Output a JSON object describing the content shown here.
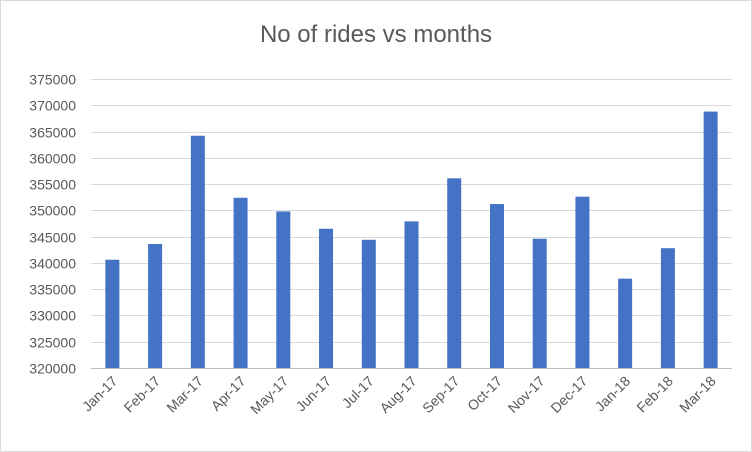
{
  "chart_data": {
    "type": "bar",
    "title": "No of rides vs months",
    "xlabel": "",
    "ylabel": "",
    "categories": [
      "Jan-17",
      "Feb-17",
      "Mar-17",
      "Apr-17",
      "May-17",
      "Jun-17",
      "Jul-17",
      "Aug-17",
      "Sep-17",
      "Oct-17",
      "Nov-17",
      "Dec-17",
      "Jan-18",
      "Feb-18",
      "Mar-18"
    ],
    "values": [
      340600,
      343600,
      364200,
      352400,
      349800,
      346500,
      344400,
      347900,
      356100,
      351200,
      344600,
      352600,
      337000,
      342800,
      368800
    ],
    "ylim": [
      320000,
      375000
    ],
    "yticks": [
      "320000",
      "325000",
      "330000",
      "335000",
      "340000",
      "345000",
      "350000",
      "355000",
      "360000",
      "365000",
      "370000",
      "375000"
    ],
    "grid": true,
    "legend": "none",
    "bar_color": "#4472C4",
    "grid_color": "#d9d9d9"
  }
}
